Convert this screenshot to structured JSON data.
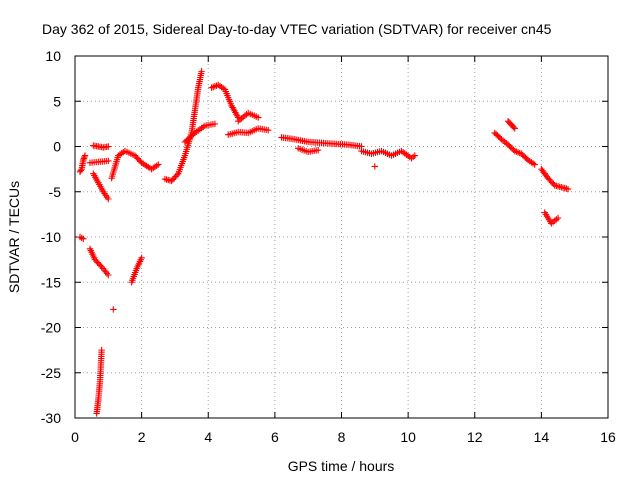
{
  "chart_data": {
    "type": "scatter",
    "title": "Day 362 of 2015, Sidereal Day-to-day VTEC variation (SDTVAR) for receiver cn45",
    "xlabel": "GPS time / hours",
    "ylabel": "SDTVAR / TECUs",
    "xlim": [
      0,
      16
    ],
    "ylim": [
      -30,
      10
    ],
    "x_ticks": [
      0,
      2,
      4,
      6,
      8,
      10,
      12,
      14,
      16
    ],
    "y_ticks": [
      -30,
      -25,
      -20,
      -15,
      -10,
      -5,
      0,
      5,
      10
    ],
    "grid": true,
    "marker": "+",
    "color": "#ff0000",
    "series": [
      {
        "name": "SDTVAR",
        "segments": [
          {
            "x": [
              0.15,
              0.2,
              0.25,
              0.3
            ],
            "y": [
              -2.8,
              -2.5,
              -1.5,
              -1.0
            ]
          },
          {
            "x": [
              0.55,
              0.7,
              0.85,
              1.0
            ],
            "y": [
              0.1,
              0.0,
              -0.1,
              0.0
            ]
          },
          {
            "x": [
              0.55,
              0.7,
              0.85,
              1.0
            ],
            "y": [
              -3.0,
              -4.0,
              -5.0,
              -5.8
            ]
          },
          {
            "x": [
              0.45,
              0.7,
              1.0
            ],
            "y": [
              -1.8,
              -1.7,
              -1.6
            ]
          },
          {
            "x": [
              0.15,
              0.25
            ],
            "y": [
              -10.0,
              -10.2
            ]
          },
          {
            "x": [
              0.45,
              0.6,
              0.8,
              1.0
            ],
            "y": [
              -11.3,
              -12.5,
              -13.3,
              -14.2
            ]
          },
          {
            "x": [
              1.15
            ],
            "y": [
              -18.0
            ]
          },
          {
            "x": [
              0.65,
              0.7,
              0.75,
              0.8
            ],
            "y": [
              -29.5,
              -28.0,
              -26.0,
              -22.5
            ]
          },
          {
            "x": [
              1.1,
              1.3,
              1.5,
              1.8,
              2.0,
              2.3,
              2.5
            ],
            "y": [
              -3.5,
              -1.0,
              -0.5,
              -1.0,
              -1.8,
              -2.5,
              -2.0
            ]
          },
          {
            "x": [
              1.7,
              1.85,
              2.0
            ],
            "y": [
              -15.0,
              -13.5,
              -12.3
            ]
          },
          {
            "x": [
              2.7,
              2.9,
              3.1,
              3.3,
              3.5,
              3.6,
              3.7,
              3.8
            ],
            "y": [
              -3.6,
              -3.8,
              -3.0,
              -1.0,
              1.5,
              4.0,
              6.5,
              8.3
            ]
          },
          {
            "x": [
              3.3,
              3.6,
              3.9,
              4.2
            ],
            "y": [
              0.5,
              1.5,
              2.3,
              2.5
            ]
          },
          {
            "x": [
              4.1,
              4.3,
              4.5,
              4.7,
              4.9
            ],
            "y": [
              6.5,
              6.8,
              6.3,
              4.5,
              3.2
            ]
          },
          {
            "x": [
              4.6,
              4.9,
              5.2,
              5.5,
              5.8
            ],
            "y": [
              1.3,
              1.6,
              1.5,
              2.0,
              1.8
            ]
          },
          {
            "x": [
              4.9,
              5.2,
              5.5
            ],
            "y": [
              2.8,
              3.7,
              3.2
            ]
          },
          {
            "x": [
              6.2,
              6.6,
              7.0,
              7.4,
              7.8,
              8.2,
              8.6
            ],
            "y": [
              1.0,
              0.8,
              0.5,
              0.4,
              0.3,
              0.2,
              0.0
            ]
          },
          {
            "x": [
              6.7,
              7.0,
              7.3
            ],
            "y": [
              -0.2,
              -0.6,
              -0.4
            ]
          },
          {
            "x": [
              8.6,
              8.9,
              9.2,
              9.5,
              9.8,
              10.1,
              10.2
            ],
            "y": [
              -0.5,
              -0.8,
              -0.5,
              -1.0,
              -0.5,
              -1.3,
              -1.0
            ]
          },
          {
            "x": [
              9.0
            ],
            "y": [
              -2.2
            ]
          },
          {
            "x": [
              12.6,
              12.8,
              13.0,
              13.2,
              13.4,
              13.6,
              13.8
            ],
            "y": [
              1.5,
              0.8,
              0.2,
              -0.5,
              -0.8,
              -1.5,
              -2.0
            ]
          },
          {
            "x": [
              13.0,
              13.1,
              13.2
            ],
            "y": [
              2.8,
              2.4,
              2.0
            ]
          },
          {
            "x": [
              14.0,
              14.2,
              14.4,
              14.6,
              14.8
            ],
            "y": [
              -2.5,
              -3.5,
              -4.3,
              -4.5,
              -4.7
            ]
          },
          {
            "x": [
              14.1,
              14.3,
              14.5
            ],
            "y": [
              -7.3,
              -8.5,
              -7.9
            ]
          }
        ]
      }
    ]
  }
}
